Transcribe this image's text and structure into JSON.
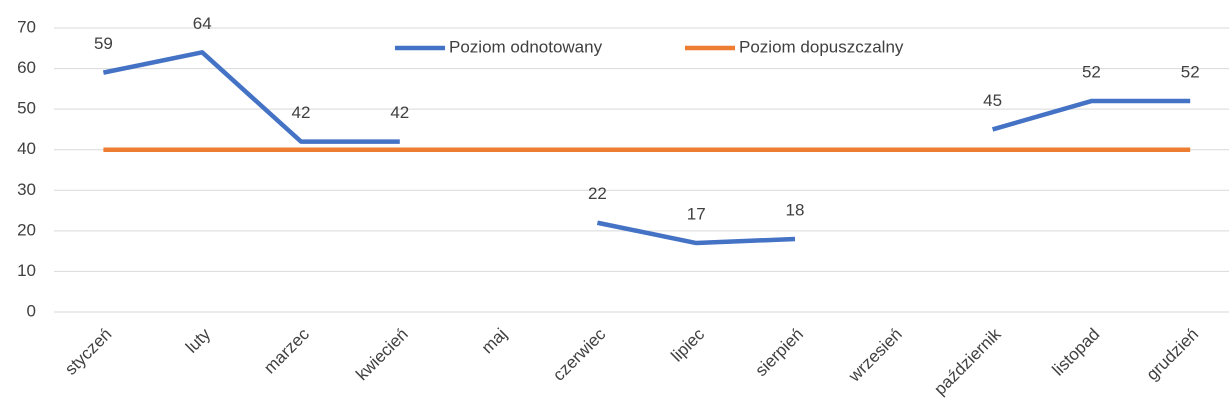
{
  "chart_data": {
    "type": "line",
    "categories": [
      "styczeń",
      "luty",
      "marzec",
      "kwiecień",
      "maj",
      "czerwiec",
      "lipiec",
      "sierpień",
      "wrzesień",
      "październik",
      "listopad",
      "grudzień"
    ],
    "series": [
      {
        "name": "Poziom odnotowany",
        "color": "#4472c4",
        "values": [
          59,
          64,
          42,
          42,
          null,
          22,
          17,
          18,
          null,
          45,
          52,
          52
        ],
        "data_labels": true
      },
      {
        "name": "Poziom dopuszczalny",
        "color": "#ed7d31",
        "values": [
          40,
          40,
          40,
          40,
          40,
          40,
          40,
          40,
          40,
          40,
          40,
          40
        ],
        "data_labels": false
      }
    ],
    "ylim": [
      0,
      70
    ],
    "yticks": [
      0,
      10,
      20,
      30,
      40,
      50,
      60,
      70
    ],
    "grid": true,
    "legend": "top"
  }
}
